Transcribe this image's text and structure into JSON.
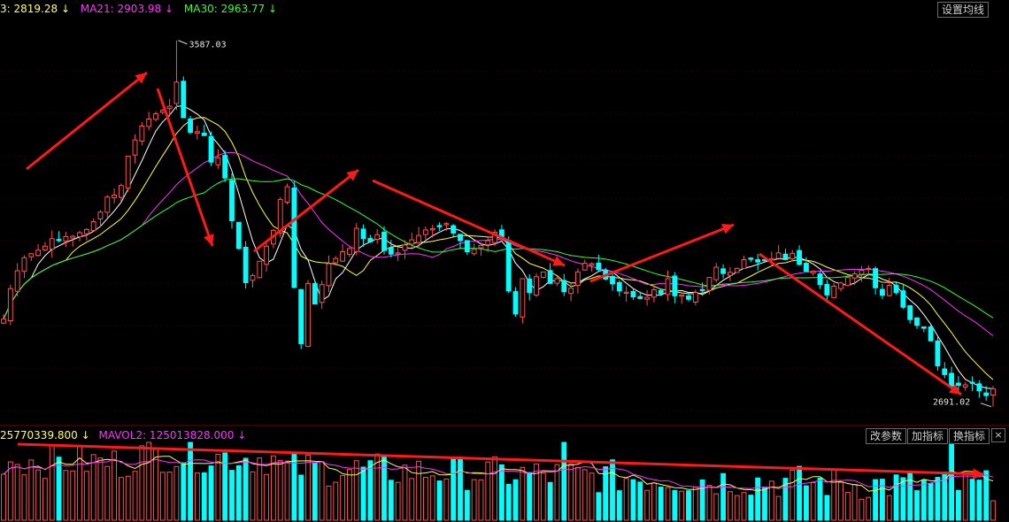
{
  "header": {
    "ma_items": [
      {
        "text": "3: 2819.28",
        "arrow": "↓",
        "color": "#ffff66"
      },
      {
        "text": "MA21: 2903.98",
        "arrow": "↓",
        "color": "#ff33ff"
      },
      {
        "text": "MA30: 2963.77",
        "arrow": "↓",
        "color": "#33ff33"
      }
    ],
    "settings_button": "设置均线"
  },
  "volume_header": {
    "items": [
      {
        "text": "25770339.800",
        "arrow": "↓",
        "color": "#ffff66"
      },
      {
        "text": "MAVOL2: 125013828.000",
        "arrow": "↓",
        "color": "#ff33ff"
      }
    ],
    "buttons": [
      "改参数",
      "加指标",
      "换指标"
    ],
    "close": "×"
  },
  "colors": {
    "up": "#ff5050",
    "down": "#00ffff",
    "ma_fast": "#ffffff",
    "ma_mid": "#ffff44",
    "ma21": "#ff33ff",
    "ma30": "#33ff33",
    "arrow": "#ff1a1a",
    "grid": "#2a0000"
  },
  "chart_data": {
    "type": "candlestick",
    "price_range": [
      2640,
      3640
    ],
    "annotations": {
      "high": "3587.03",
      "low": "2691.02"
    },
    "closes": [
      2884,
      2961,
      3006,
      3039,
      3049,
      3058,
      3068,
      3087,
      3082,
      3092,
      3093,
      3102,
      3110,
      3130,
      3154,
      3192,
      3197,
      3221,
      3295,
      3336,
      3371,
      3389,
      3402,
      3411,
      3421,
      3482,
      3392,
      3355,
      3357,
      3347,
      3280,
      3291,
      3240,
      3132,
      3062,
      2976,
      2994,
      3030,
      3068,
      3108,
      3186,
      3218,
      2964,
      2822,
      2974,
      2922,
      2971,
      3024,
      3037,
      3054,
      3062,
      3113,
      3087,
      3079,
      3097,
      3057,
      3048,
      3051,
      3071,
      3084,
      3095,
      3109,
      3112,
      3117,
      3125,
      3101,
      3082,
      3054,
      3060,
      3070,
      3082,
      3103,
      3088,
      2955,
      2897,
      2986,
      2951,
      2991,
      3003,
      2974,
      2986,
      2953,
      2962,
      3003,
      3025,
      3024,
      3009,
      2985,
      2973,
      2955,
      2952,
      2940,
      2936,
      2939,
      2958,
      2948,
      2986,
      2943,
      2945,
      2934,
      2951,
      2956,
      2989,
      3015,
      2999,
      3002,
      3012,
      3034,
      3035,
      3028,
      3031,
      3036,
      3051,
      3034,
      3050,
      3022,
      3005,
      3005,
      2971,
      2945,
      2967,
      2975,
      2989,
      2998,
      3007,
      3012,
      2963,
      2944,
      2969,
      2951,
      2914,
      2883,
      2868,
      2861,
      2829,
      2766,
      2744,
      2715,
      2717,
      2718,
      2722,
      2703,
      2691,
      2708
    ]
  }
}
